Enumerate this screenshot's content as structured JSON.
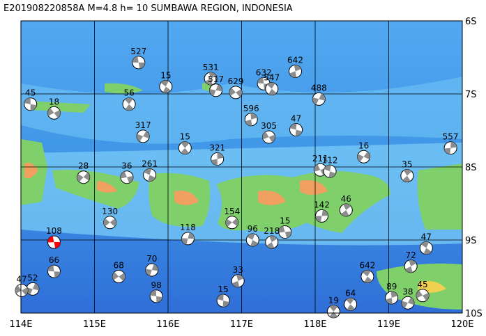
{
  "chart_data": {
    "type": "focal-map",
    "title": "E201908220858A M=4.8 h= 10 SUMBAWA REGION, INDONESIA",
    "xlim": [
      114,
      120
    ],
    "ylim": [
      -10,
      -6
    ],
    "xticks": [
      {
        "value": 114,
        "label": "114E"
      },
      {
        "value": 115,
        "label": "115E"
      },
      {
        "value": 116,
        "label": "116E"
      },
      {
        "value": 117,
        "label": "117E"
      },
      {
        "value": 118,
        "label": "118E"
      },
      {
        "value": 119,
        "label": "119E"
      },
      {
        "value": 120,
        "label": "120E"
      }
    ],
    "yticks": [
      {
        "value": -6,
        "label": "6S"
      },
      {
        "value": -7,
        "label": "7S"
      },
      {
        "value": -8,
        "label": "8S"
      },
      {
        "value": -9,
        "label": "9S"
      },
      {
        "value": -10,
        "label": "10S"
      }
    ],
    "grid": true,
    "mechanism_color": "#8c8c8c",
    "events": [
      {
        "lon": 115.6,
        "lat": -6.57,
        "depth": 527
      },
      {
        "lon": 115.97,
        "lat": -6.9,
        "depth": 15
      },
      {
        "lon": 116.58,
        "lat": -6.79,
        "depth": 531
      },
      {
        "lon": 116.65,
        "lat": -6.95,
        "depth": 517
      },
      {
        "lon": 116.92,
        "lat": -6.98,
        "depth": 629
      },
      {
        "lon": 117.3,
        "lat": -6.86,
        "depth": 632
      },
      {
        "lon": 117.41,
        "lat": -6.93,
        "depth": 547
      },
      {
        "lon": 117.73,
        "lat": -6.69,
        "depth": 642
      },
      {
        "lon": 118.05,
        "lat": -7.07,
        "depth": 488
      },
      {
        "lon": 114.45,
        "lat": -7.26,
        "depth": 18
      },
      {
        "lon": 114.13,
        "lat": -7.14,
        "depth": 45
      },
      {
        "lon": 115.47,
        "lat": -7.14,
        "depth": 56
      },
      {
        "lon": 117.13,
        "lat": -7.35,
        "depth": 596
      },
      {
        "lon": 115.66,
        "lat": -7.58,
        "depth": 317
      },
      {
        "lon": 117.37,
        "lat": -7.59,
        "depth": 305
      },
      {
        "lon": 117.74,
        "lat": -7.49,
        "depth": 47
      },
      {
        "lon": 116.23,
        "lat": -7.74,
        "depth": 15
      },
      {
        "lon": 116.67,
        "lat": -7.89,
        "depth": 321
      },
      {
        "lon": 118.66,
        "lat": -7.86,
        "depth": 16
      },
      {
        "lon": 118.07,
        "lat": -8.04,
        "depth": 211
      },
      {
        "lon": 118.2,
        "lat": -8.06,
        "depth": 112
      },
      {
        "lon": 119.25,
        "lat": -8.12,
        "depth": 35
      },
      {
        "lon": 119.84,
        "lat": -7.74,
        "depth": 557
      },
      {
        "lon": 114.85,
        "lat": -8.14,
        "depth": 28
      },
      {
        "lon": 115.44,
        "lat": -8.14,
        "depth": 36
      },
      {
        "lon": 115.75,
        "lat": -8.11,
        "depth": 261
      },
      {
        "lon": 118.42,
        "lat": -8.59,
        "depth": 46
      },
      {
        "lon": 118.09,
        "lat": -8.67,
        "depth": 142
      },
      {
        "lon": 116.87,
        "lat": -8.76,
        "depth": 154
      },
      {
        "lon": 117.59,
        "lat": -8.89,
        "depth": 15
      },
      {
        "lon": 117.15,
        "lat": -9.0,
        "depth": 96
      },
      {
        "lon": 117.41,
        "lat": -9.03,
        "depth": 218
      },
      {
        "lon": 116.27,
        "lat": -8.98,
        "depth": 118
      },
      {
        "lon": 115.21,
        "lat": -8.76,
        "depth": 130
      },
      {
        "lon": 114.45,
        "lat": -9.03,
        "depth": 108,
        "color": "#ff0000"
      },
      {
        "lon": 119.51,
        "lat": -9.11,
        "depth": 47
      },
      {
        "lon": 119.3,
        "lat": -9.36,
        "depth": 72
      },
      {
        "lon": 115.78,
        "lat": -9.41,
        "depth": 70
      },
      {
        "lon": 115.33,
        "lat": -9.5,
        "depth": 68
      },
      {
        "lon": 114.45,
        "lat": -9.43,
        "depth": 66
      },
      {
        "lon": 118.71,
        "lat": -9.5,
        "depth": 642
      },
      {
        "lon": 116.95,
        "lat": -9.56,
        "depth": 33
      },
      {
        "lon": 114.16,
        "lat": -9.67,
        "depth": 52
      },
      {
        "lon": 114.01,
        "lat": -9.69,
        "depth": 47
      },
      {
        "lon": 115.84,
        "lat": -9.77,
        "depth": 98
      },
      {
        "lon": 118.48,
        "lat": -9.88,
        "depth": 64
      },
      {
        "lon": 119.04,
        "lat": -9.79,
        "depth": 89
      },
      {
        "lon": 119.26,
        "lat": -9.86,
        "depth": 38
      },
      {
        "lon": 119.46,
        "lat": -9.76,
        "depth": 45
      },
      {
        "lon": 116.75,
        "lat": -9.83,
        "depth": 15
      },
      {
        "lon": 118.25,
        "lat": -9.98,
        "depth": 19
      }
    ]
  }
}
